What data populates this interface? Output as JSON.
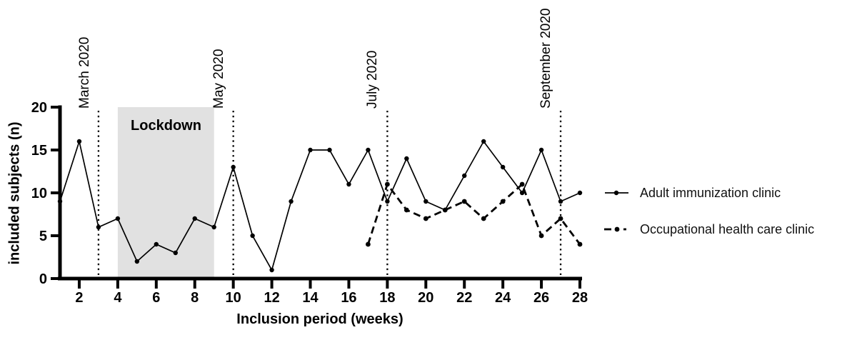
{
  "chart_data": {
    "type": "line",
    "title": "",
    "xlabel": "Inclusion period (weeks)",
    "ylabel": "included subjects (n)",
    "xlim": [
      1,
      28
    ],
    "ylim": [
      0,
      20
    ],
    "x_ticks": [
      2,
      4,
      6,
      8,
      10,
      12,
      14,
      16,
      18,
      20,
      22,
      24,
      26,
      28
    ],
    "y_ticks": [
      0,
      5,
      10,
      15,
      20
    ],
    "grid": false,
    "legend_position": "right-outside",
    "series": [
      {
        "name": "Adult immunization clinic",
        "line_style": "solid",
        "marker": "circle",
        "color": "#000000",
        "x": [
          1,
          2,
          3,
          4,
          5,
          6,
          7,
          8,
          9,
          10,
          11,
          12,
          13,
          14,
          15,
          16,
          17,
          18,
          19,
          20,
          21,
          22,
          23,
          24,
          25,
          26,
          27,
          28
        ],
        "values": [
          9,
          16,
          6,
          7,
          2,
          4,
          3,
          7,
          6,
          13,
          5,
          1,
          9,
          15,
          15,
          11,
          15,
          9,
          14,
          9,
          8,
          12,
          16,
          13,
          10,
          15,
          9,
          10
        ]
      },
      {
        "name": "Occupational health care clinic",
        "line_style": "dashed",
        "marker": "circle",
        "color": "#000000",
        "x": [
          17,
          18,
          19,
          20,
          21,
          22,
          23,
          24,
          25,
          26,
          27,
          28
        ],
        "values": [
          4,
          11,
          8,
          7,
          8,
          9,
          7,
          9,
          11,
          5,
          7,
          4
        ]
      }
    ],
    "region": {
      "label": "Lockdown",
      "x_start": 4,
      "x_end": 9,
      "fill": "#e1e1e1"
    },
    "vlines": [
      {
        "label": "March 2020",
        "x": 3
      },
      {
        "label": "May 2020",
        "x": 10
      },
      {
        "label": "July 2020",
        "x": 18
      },
      {
        "label": "September 2020",
        "x": 27
      }
    ]
  },
  "colors": {
    "axis": "#000000",
    "text": "#000000",
    "region_fill": "#e1e1e1",
    "background": "#ffffff"
  }
}
